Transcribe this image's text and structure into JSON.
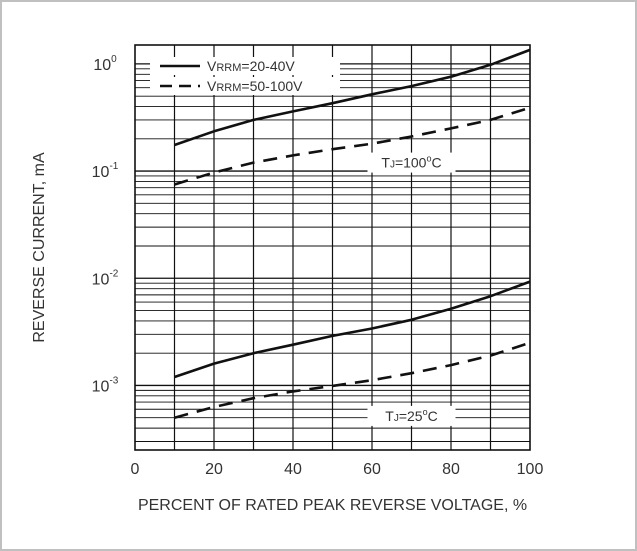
{
  "chart_data": {
    "type": "line",
    "title": "",
    "xlabel": "PERCENT OF RATED PEAK REVERSE VOLTAGE, %",
    "ylabel": "REVERSE CURRENT, mA",
    "xlim": [
      0,
      100
    ],
    "ylim": [
      0.00025,
      1.5
    ],
    "yscale": "log",
    "grid": true,
    "legend_position": "top-left",
    "x_ticks": [
      0,
      20,
      40,
      60,
      80,
      100
    ],
    "x_tick_labels": [
      "0",
      "20",
      "40",
      "60",
      "80",
      "100"
    ],
    "y_ticks": [
      {
        "value": 1,
        "base": "10",
        "exp": "0"
      },
      {
        "value": 0.1,
        "base": "10",
        "exp": "-1"
      },
      {
        "value": 0.01,
        "base": "10",
        "exp": "-2"
      },
      {
        "value": 0.001,
        "base": "10",
        "exp": "-3"
      }
    ],
    "legend": [
      {
        "prefix": "V",
        "sub": "RRM",
        "suffix": "=20-40V",
        "style": "solid"
      },
      {
        "prefix": "V",
        "sub": "RRM",
        "suffix": "=50-100V",
        "style": "dashed"
      }
    ],
    "annotations": [
      {
        "prefix": "T",
        "sub": "J",
        "temp": "=100",
        "sup": "o",
        "unit": "C",
        "at_x": 70,
        "at_y": 0.12
      },
      {
        "prefix": "T",
        "sub": "J",
        "temp": "=25",
        "sup": "o",
        "unit": "C",
        "at_x": 70,
        "at_y": 0.00052
      }
    ],
    "series": [
      {
        "group": "100C",
        "style": "solid",
        "x": [
          10,
          20,
          30,
          40,
          50,
          60,
          70,
          80,
          90,
          100
        ],
        "values": [
          0.175,
          0.235,
          0.3,
          0.36,
          0.43,
          0.52,
          0.62,
          0.76,
          0.98,
          1.35
        ]
      },
      {
        "group": "100C",
        "style": "dashed",
        "x": [
          10,
          20,
          30,
          40,
          50,
          60,
          70,
          80,
          90,
          100
        ],
        "values": [
          0.075,
          0.097,
          0.12,
          0.14,
          0.16,
          0.18,
          0.21,
          0.25,
          0.3,
          0.39
        ]
      },
      {
        "group": "25C",
        "style": "solid",
        "x": [
          10,
          20,
          30,
          40,
          50,
          60,
          70,
          80,
          90,
          100
        ],
        "values": [
          0.0012,
          0.0016,
          0.002,
          0.0024,
          0.0029,
          0.0034,
          0.0041,
          0.0052,
          0.0068,
          0.0093
        ]
      },
      {
        "group": "25C",
        "style": "dashed",
        "x": [
          10,
          20,
          30,
          40,
          50,
          60,
          70,
          80,
          90,
          100
        ],
        "values": [
          0.0005,
          0.00063,
          0.00076,
          0.00088,
          0.00099,
          0.00112,
          0.0013,
          0.00155,
          0.0019,
          0.0025
        ]
      }
    ]
  }
}
